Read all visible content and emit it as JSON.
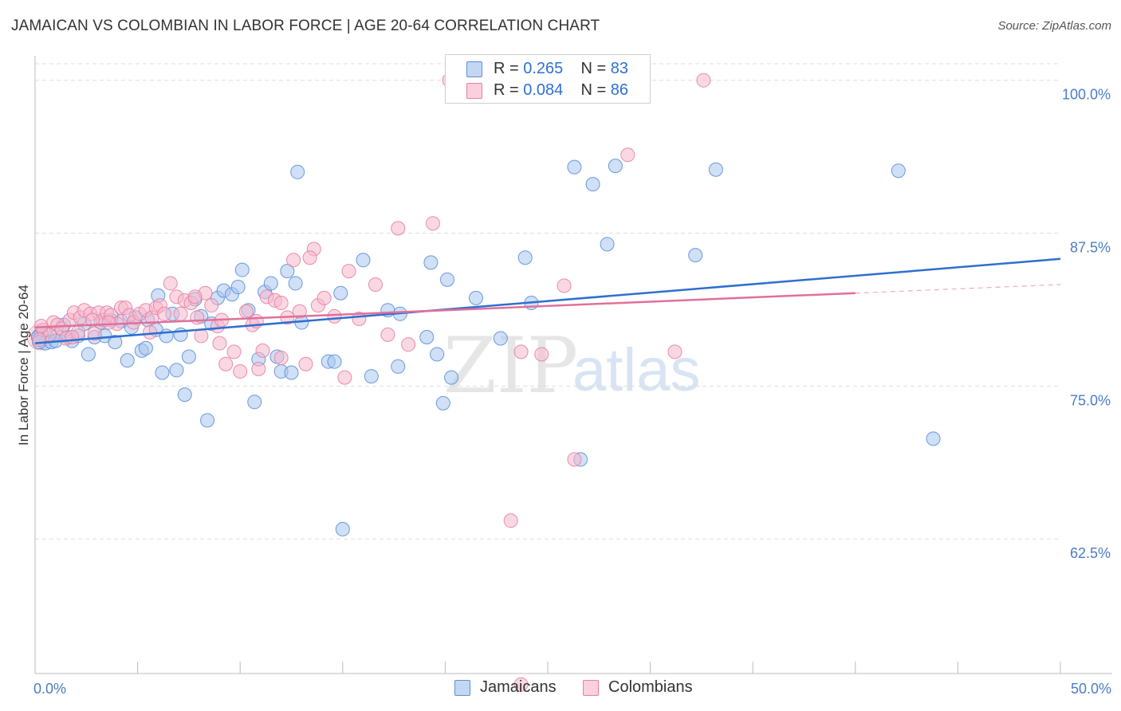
{
  "title": "JAMAICAN VS COLOMBIAN IN LABOR FORCE | AGE 20-64 CORRELATION CHART",
  "source": "Source: ZipAtlas.com",
  "colors": {
    "blue_fill": "#a9c6ee",
    "blue_stroke": "#5b8fd9",
    "blue_line": "#2e6fd0",
    "pink_fill": "#f6b8cc",
    "pink_stroke": "#e77fa1",
    "pink_line": "#e0709a",
    "axis_text": "#4a7cc7",
    "grid": "#dddddd"
  },
  "legend": {
    "rows": [
      {
        "r_label": "R = ",
        "r_value": "0.265",
        "n_label": "N = ",
        "n_value": "83"
      },
      {
        "r_label": "R = ",
        "r_value": "0.084",
        "n_label": "N = ",
        "n_value": "86"
      }
    ]
  },
  "bottom_legend": [
    "Jamaicans",
    "Colombians"
  ],
  "watermark": {
    "zip": "ZIP",
    "atlas": "atlas"
  },
  "chart_data": {
    "type": "scatter",
    "title": "JAMAICAN VS COLOMBIAN IN LABOR FORCE | AGE 20-64 CORRELATION CHART",
    "xlabel": "",
    "ylabel": "In Labor Force | Age 20-64",
    "xlim": [
      0,
      50
    ],
    "ylim": [
      51.5,
      102
    ],
    "x_tick_labels": [
      "0.0%",
      "50.0%"
    ],
    "y_ticks": [
      62.5,
      75.0,
      87.5,
      100.0
    ],
    "y_tick_labels": [
      "62.5%",
      "75.0%",
      "87.5%",
      "100.0%"
    ],
    "grid": true,
    "series": [
      {
        "name": "Jamaicans",
        "r": 0.265,
        "n": 83,
        "trend": {
          "x": [
            0,
            50
          ],
          "y": [
            78.5,
            85.4
          ]
        },
        "points": [
          [
            0.3,
            79.3
          ],
          [
            0.5,
            78.5
          ],
          [
            0.8,
            78.6
          ],
          [
            1.1,
            79.2
          ],
          [
            1.4,
            80.0
          ],
          [
            1.6,
            79.0
          ],
          [
            1.8,
            78.7
          ],
          [
            2.1,
            79.1
          ],
          [
            2.4,
            80.1
          ],
          [
            2.6,
            77.6
          ],
          [
            2.9,
            79.0
          ],
          [
            3.2,
            80.2
          ],
          [
            3.4,
            79.1
          ],
          [
            3.7,
            80.4
          ],
          [
            3.9,
            78.6
          ],
          [
            4.2,
            80.3
          ],
          [
            4.5,
            77.1
          ],
          [
            4.7,
            79.8
          ],
          [
            4.9,
            80.6
          ],
          [
            5.2,
            77.9
          ],
          [
            5.4,
            78.1
          ],
          [
            5.5,
            80.4
          ],
          [
            5.9,
            79.6
          ],
          [
            6.0,
            82.4
          ],
          [
            6.2,
            76.1
          ],
          [
            6.4,
            79.1
          ],
          [
            6.7,
            80.9
          ],
          [
            6.9,
            76.3
          ],
          [
            7.1,
            79.2
          ],
          [
            7.3,
            74.3
          ],
          [
            7.5,
            77.4
          ],
          [
            7.8,
            82.1
          ],
          [
            8.1,
            80.7
          ],
          [
            8.4,
            72.2
          ],
          [
            8.6,
            80.1
          ],
          [
            8.9,
            82.2
          ],
          [
            9.2,
            82.8
          ],
          [
            9.6,
            82.5
          ],
          [
            9.9,
            83.1
          ],
          [
            10.1,
            84.5
          ],
          [
            10.4,
            81.2
          ],
          [
            10.7,
            73.7
          ],
          [
            10.9,
            77.2
          ],
          [
            11.2,
            82.7
          ],
          [
            11.5,
            83.4
          ],
          [
            11.8,
            77.4
          ],
          [
            12.0,
            76.2
          ],
          [
            12.3,
            84.4
          ],
          [
            12.7,
            83.4
          ],
          [
            13.0,
            80.2
          ],
          [
            14.3,
            77.0
          ],
          [
            14.6,
            77.0
          ],
          [
            14.9,
            82.6
          ],
          [
            15.0,
            63.3
          ],
          [
            16.0,
            85.3
          ],
          [
            16.4,
            75.8
          ],
          [
            17.2,
            81.2
          ],
          [
            17.7,
            76.6
          ],
          [
            17.8,
            80.9
          ],
          [
            19.1,
            79.0
          ],
          [
            19.3,
            85.1
          ],
          [
            19.6,
            77.6
          ],
          [
            19.9,
            73.6
          ],
          [
            20.1,
            83.7
          ],
          [
            20.3,
            75.7
          ],
          [
            21.5,
            82.2
          ],
          [
            22.7,
            78.9
          ],
          [
            23.9,
            85.5
          ],
          [
            24.2,
            81.8
          ],
          [
            26.3,
            92.9
          ],
          [
            26.6,
            69.0
          ],
          [
            27.2,
            91.5
          ],
          [
            27.9,
            86.6
          ],
          [
            28.3,
            93.0
          ],
          [
            32.2,
            85.7
          ],
          [
            33.2,
            92.7
          ],
          [
            42.1,
            92.6
          ],
          [
            43.8,
            70.7
          ],
          [
            12.8,
            92.5
          ],
          [
            12.5,
            76.1
          ],
          [
            0.15,
            79.0
          ],
          [
            0.2,
            78.6
          ],
          [
            1.0,
            78.7
          ]
        ]
      },
      {
        "name": "Colombians",
        "r": 0.084,
        "n": 86,
        "trend": {
          "x": [
            0,
            40
          ],
          "y": [
            79.8,
            82.6
          ]
        },
        "trend_dashed": {
          "x": [
            40,
            50
          ],
          "y": [
            82.6,
            83.3
          ]
        },
        "points": [
          [
            0.4,
            79.6
          ],
          [
            0.7,
            79.2
          ],
          [
            0.9,
            80.2
          ],
          [
            1.1,
            80.0
          ],
          [
            1.3,
            79.7
          ],
          [
            1.5,
            78.9
          ],
          [
            1.7,
            80.4
          ],
          [
            1.9,
            81.0
          ],
          [
            2.1,
            79.4
          ],
          [
            2.2,
            80.6
          ],
          [
            2.4,
            81.2
          ],
          [
            2.7,
            80.9
          ],
          [
            2.9,
            79.3
          ],
          [
            3.1,
            81.0
          ],
          [
            3.3,
            80.4
          ],
          [
            3.5,
            81.0
          ],
          [
            3.7,
            80.8
          ],
          [
            4.0,
            80.1
          ],
          [
            4.2,
            81.4
          ],
          [
            4.4,
            81.4
          ],
          [
            4.6,
            80.8
          ],
          [
            4.8,
            80.2
          ],
          [
            5.1,
            80.9
          ],
          [
            5.4,
            81.2
          ],
          [
            5.7,
            80.6
          ],
          [
            5.9,
            81.4
          ],
          [
            6.1,
            81.6
          ],
          [
            6.3,
            80.9
          ],
          [
            6.6,
            83.4
          ],
          [
            6.9,
            82.3
          ],
          [
            7.1,
            80.9
          ],
          [
            7.3,
            82.0
          ],
          [
            7.6,
            81.8
          ],
          [
            7.9,
            80.6
          ],
          [
            8.1,
            79.1
          ],
          [
            8.3,
            82.6
          ],
          [
            8.6,
            81.6
          ],
          [
            8.9,
            79.9
          ],
          [
            9.1,
            80.4
          ],
          [
            9.3,
            76.8
          ],
          [
            9.7,
            77.8
          ],
          [
            10.0,
            76.2
          ],
          [
            10.3,
            81.1
          ],
          [
            10.6,
            80.0
          ],
          [
            10.9,
            76.4
          ],
          [
            11.1,
            77.9
          ],
          [
            11.3,
            82.3
          ],
          [
            11.7,
            82.0
          ],
          [
            12.0,
            77.3
          ],
          [
            12.3,
            80.6
          ],
          [
            12.6,
            85.3
          ],
          [
            12.9,
            81.1
          ],
          [
            13.2,
            76.8
          ],
          [
            13.6,
            86.2
          ],
          [
            13.8,
            81.6
          ],
          [
            14.1,
            82.2
          ],
          [
            14.6,
            80.7
          ],
          [
            15.1,
            75.7
          ],
          [
            15.3,
            84.4
          ],
          [
            15.8,
            80.5
          ],
          [
            16.6,
            83.3
          ],
          [
            17.2,
            79.2
          ],
          [
            17.7,
            87.9
          ],
          [
            18.2,
            78.4
          ],
          [
            19.4,
            88.3
          ],
          [
            20.2,
            100.0
          ],
          [
            23.2,
            64.0
          ],
          [
            23.7,
            77.8
          ],
          [
            24.7,
            77.6
          ],
          [
            25.8,
            83.2
          ],
          [
            26.3,
            69.0
          ],
          [
            28.9,
            93.9
          ],
          [
            31.2,
            77.8
          ],
          [
            32.6,
            100.0
          ],
          [
            23.7,
            50.6
          ],
          [
            0.2,
            78.8
          ],
          [
            0.3,
            79.9
          ],
          [
            1.8,
            79.0
          ],
          [
            7.8,
            82.3
          ],
          [
            10.8,
            80.3
          ],
          [
            12.0,
            81.8
          ],
          [
            13.4,
            85.5
          ],
          [
            9.0,
            78.5
          ],
          [
            5.6,
            79.4
          ],
          [
            3.6,
            80.2
          ],
          [
            2.8,
            80.4
          ]
        ]
      }
    ]
  }
}
